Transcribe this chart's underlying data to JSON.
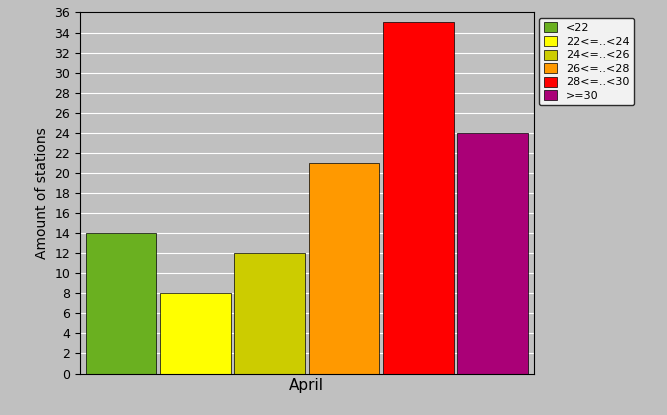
{
  "xlabel": "April",
  "ylabel": "Amount of stations",
  "categories": [
    "<22",
    "22<=..<24",
    "24<=..<26",
    "26<=..<28",
    "28<=..<30",
    ">=30"
  ],
  "values": [
    14,
    8,
    12,
    21,
    35,
    24
  ],
  "bar_colors": [
    "#6ab020",
    "#ffff00",
    "#cccc00",
    "#ff9900",
    "#ff0000",
    "#aa0077"
  ],
  "ylim": [
    0,
    36
  ],
  "yticks": [
    0,
    2,
    4,
    6,
    8,
    10,
    12,
    14,
    16,
    18,
    20,
    22,
    24,
    26,
    28,
    30,
    32,
    34,
    36
  ],
  "background_color": "#c0c0c0",
  "legend_labels": [
    "<22",
    "22<=..<24",
    "24<=..<26",
    "26<=..<28",
    "28<=..<30",
    ">=30"
  ],
  "axis_bg_color": "#c0c0c0",
  "bar_width": 0.95,
  "bar_gap": 0.05
}
